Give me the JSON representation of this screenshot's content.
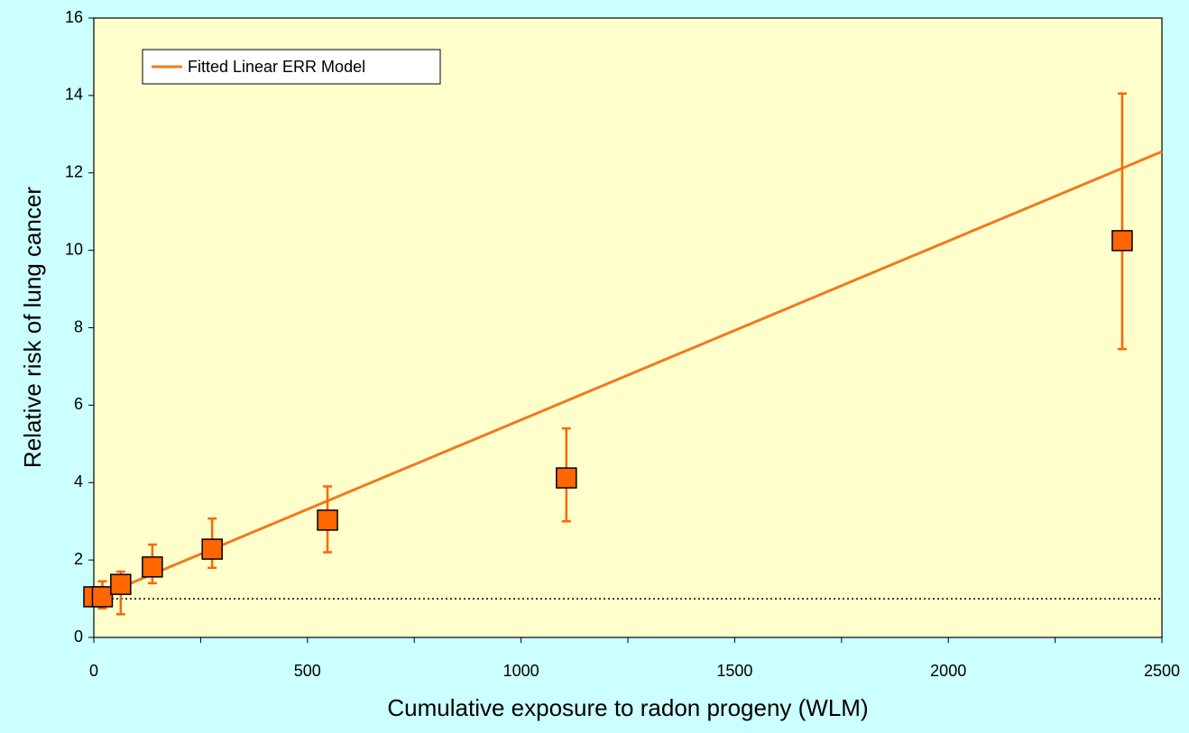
{
  "chart_data": {
    "type": "scatter",
    "xlabel": "Cumulative exposure to radon progeny (WLM)",
    "ylabel": "Relative risk of lung cancer",
    "xlim": [
      0,
      2500
    ],
    "ylim": [
      0,
      16
    ],
    "xticks": [
      0,
      500,
      1000,
      1500,
      2000,
      2500
    ],
    "xminorticks": [
      250,
      750,
      1250,
      1750,
      2250
    ],
    "yticks": [
      0,
      2,
      4,
      6,
      8,
      10,
      12,
      14,
      16
    ],
    "reference_line": 1,
    "legend": "upper left",
    "series": [
      {
        "color": "#ff6600",
        "x": [
          0,
          20,
          63,
          137,
          277,
          547,
          1106,
          2407
        ],
        "values": [
          1.05,
          1.05,
          1.37,
          1.82,
          2.28,
          3.03,
          4.12,
          10.25
        ],
        "lower": [
          null,
          0.75,
          0.6,
          1.4,
          1.8,
          2.2,
          3.0,
          7.45
        ],
        "upper": [
          null,
          1.45,
          1.7,
          2.4,
          3.07,
          3.9,
          5.4,
          14.05
        ]
      }
    ],
    "fit": {
      "name": "Fitted Linear ERR Model",
      "color": "#f07a1e",
      "x": [
        0,
        2500
      ],
      "values": [
        1.0,
        12.55
      ]
    }
  }
}
